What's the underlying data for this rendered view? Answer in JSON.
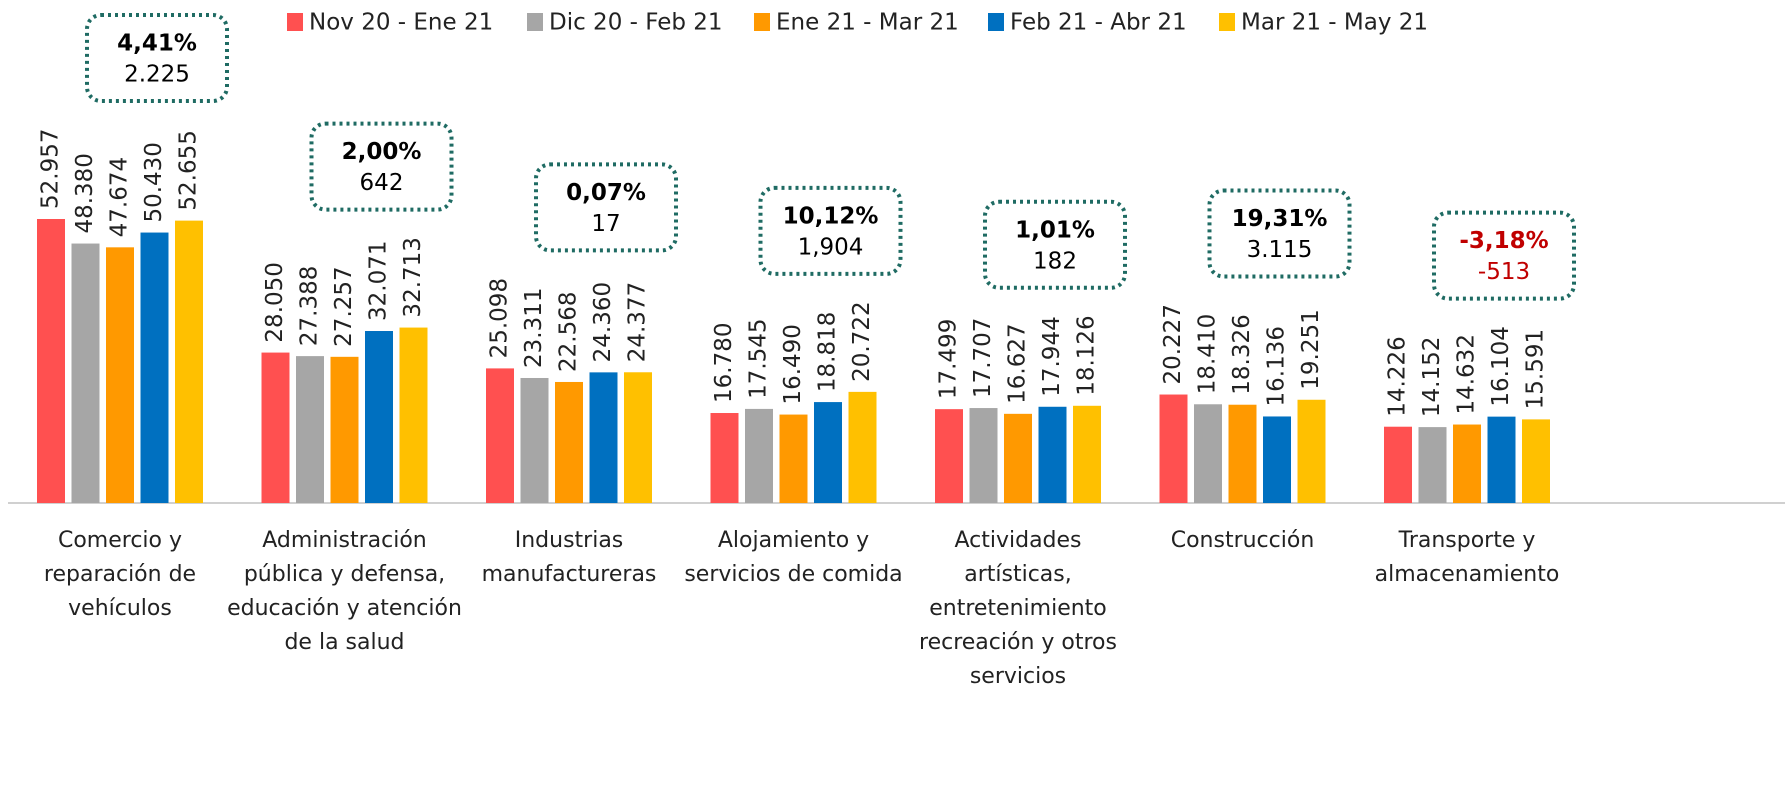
{
  "chart_data": {
    "type": "bar",
    "categories": [
      "Comercio y reparación de vehículos",
      "Administración pública y defensa, educación y atención de la salud",
      "Industrias manufactureras",
      "Alojamiento y servicios de comida",
      "Actividades artísticas, entretenimiento recreación y otros servicios",
      "Construcción",
      "Transporte y almacenamiento"
    ],
    "series": [
      {
        "name": "Nov 20 - Ene 21",
        "color": "#ff5050",
        "values": [
          52957,
          28050,
          25098,
          16780,
          17499,
          20227,
          14226
        ],
        "value_labels": [
          "52.957",
          "28.050",
          "25.098",
          "16.780",
          "17.499",
          "20.227",
          "14.226"
        ]
      },
      {
        "name": "Dic 20 - Feb 21",
        "color": "#a6a6a6",
        "values": [
          48380,
          27388,
          23311,
          17545,
          17707,
          18410,
          14152
        ],
        "value_labels": [
          "48.380",
          "27.388",
          "23.311",
          "17.545",
          "17.707",
          "18.410",
          "14.152"
        ]
      },
      {
        "name": "Ene 21 - Mar 21",
        "color": "#ff9900",
        "values": [
          47674,
          27257,
          22568,
          16490,
          16627,
          18326,
          14632
        ],
        "value_labels": [
          "47.674",
          "27.257",
          "22.568",
          "16.490",
          "16.627",
          "18.326",
          "14.632"
        ]
      },
      {
        "name": "Feb 21 - Abr 21",
        "color": "#0070c0",
        "values": [
          50430,
          32071,
          24360,
          18818,
          17944,
          16136,
          16104
        ],
        "value_labels": [
          "50.430",
          "32.071",
          "24.360",
          "18.818",
          "17.944",
          "16.136",
          "16.104"
        ]
      },
      {
        "name": "Mar 21 - May 21",
        "color": "#ffc000",
        "values": [
          52655,
          32713,
          24377,
          20722,
          18126,
          19251,
          15591
        ],
        "value_labels": [
          "52.655",
          "32.713",
          "24.377",
          "20.722",
          "18.126",
          "19.251",
          "15.591"
        ]
      }
    ],
    "annotations": [
      {
        "pct": "4,41%",
        "change": "2.225",
        "color": "#000000"
      },
      {
        "pct": "2,00%",
        "change": "642",
        "color": "#000000"
      },
      {
        "pct": "0,07%",
        "change": "17",
        "color": "#000000"
      },
      {
        "pct": "10,12%",
        "change": "1,904",
        "color": "#000000"
      },
      {
        "pct": "1,01%",
        "change": "182",
        "color": "#000000"
      },
      {
        "pct": "19,31%",
        "change": "3.115",
        "color": "#000000"
      },
      {
        "pct": "-3,18%",
        "change": "-513",
        "color": "#c00000"
      }
    ],
    "legend": "top"
  }
}
